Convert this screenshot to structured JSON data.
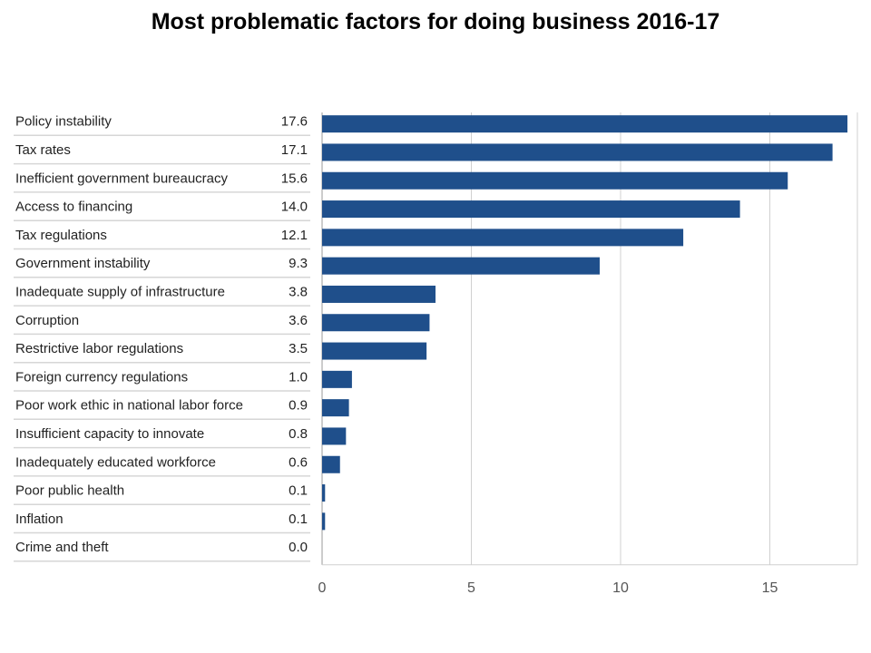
{
  "title": "Most problematic factors for doing business 2016-17",
  "colors": {
    "bar": "#1f4f8b",
    "grid": "#d0d0d0",
    "row_rule": "#d6d6d6",
    "axis": "#9a9a9a"
  },
  "chart_data": {
    "type": "bar",
    "orientation": "horizontal",
    "title": "Most problematic factors for doing business 2016-17",
    "categories": [
      "Policy instability",
      "Tax rates",
      "Inefficient government bureaucracy",
      "Access to financing",
      "Tax regulations",
      "Government instability",
      "Inadequate supply of infrastructure",
      "Corruption",
      "Restrictive labor regulations",
      "Foreign currency regulations",
      "Poor work ethic in national labor force",
      "Insufficient capacity to innovate",
      "Inadequately educated workforce",
      "Poor public health",
      "Inflation",
      "Crime and theft"
    ],
    "values": [
      17.6,
      17.1,
      15.6,
      14.0,
      12.1,
      9.3,
      3.8,
      3.6,
      3.5,
      1.0,
      0.9,
      0.8,
      0.6,
      0.1,
      0.1,
      0.0
    ],
    "value_labels": [
      "17.6",
      "17.1",
      "15.6",
      "14.0",
      "12.1",
      "9.3",
      "3.8",
      "3.6",
      "3.5",
      "1.0",
      "0.9",
      "0.8",
      "0.6",
      "0.1",
      "0.1",
      "0.0"
    ],
    "xlim": [
      0,
      18
    ],
    "xticks": [
      0,
      5,
      10,
      15
    ],
    "xtick_labels": [
      "0",
      "5",
      "10",
      "15"
    ],
    "grid": true,
    "legend": "none"
  }
}
